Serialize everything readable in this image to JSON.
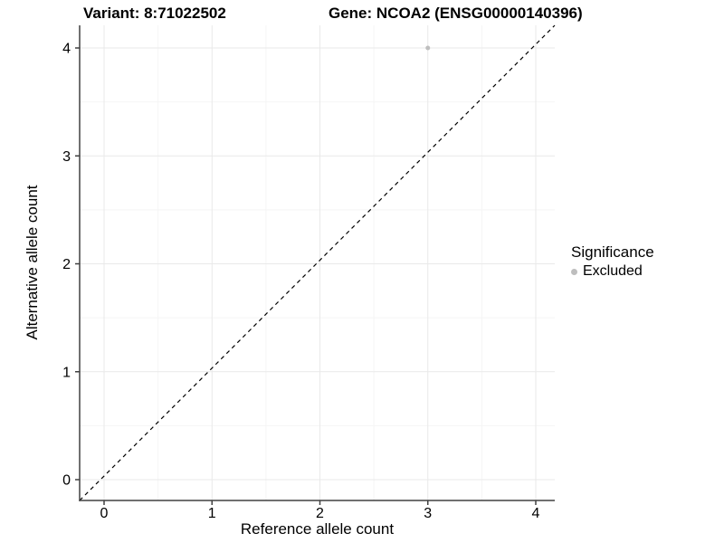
{
  "title": {
    "variant": "Variant: 8:71022502",
    "gene": "Gene: NCOA2 (ENSG00000140396)"
  },
  "chart_data": {
    "type": "scatter",
    "title": "Variant: 8:71022502    Gene: NCOA2 (ENSG00000140396)",
    "xlabel": "Reference allele count",
    "ylabel": "Alternative allele count",
    "xlim": [
      -0.22,
      4.2
    ],
    "ylim": [
      -0.22,
      4.2
    ],
    "x_ticks": [
      0,
      1,
      2,
      3,
      4
    ],
    "y_ticks": [
      0,
      1,
      2,
      3,
      4
    ],
    "x_minor_ticks": [
      0.5,
      1.5,
      2.5,
      3.5
    ],
    "y_minor_ticks": [
      0.5,
      1.5,
      2.5,
      3.5
    ],
    "grid": true,
    "points": [
      {
        "x": 3,
        "y": 4,
        "significance": "Excluded"
      }
    ],
    "identity_line": {
      "style": "dashed",
      "from": [
        -0.22,
        -0.22
      ],
      "to": [
        4.2,
        4.2
      ]
    },
    "legend": {
      "title": "Significance",
      "position": "right",
      "items": [
        {
          "label": "Excluded",
          "color": "#bebebe",
          "marker": "circle"
        }
      ]
    },
    "colors": {
      "point": "#bebebe",
      "grid_major": "#e9e9e9",
      "grid_minor": "#f5f5f5",
      "axis": "#404040",
      "dashed_line": "#000000",
      "background": "#ffffff"
    }
  }
}
